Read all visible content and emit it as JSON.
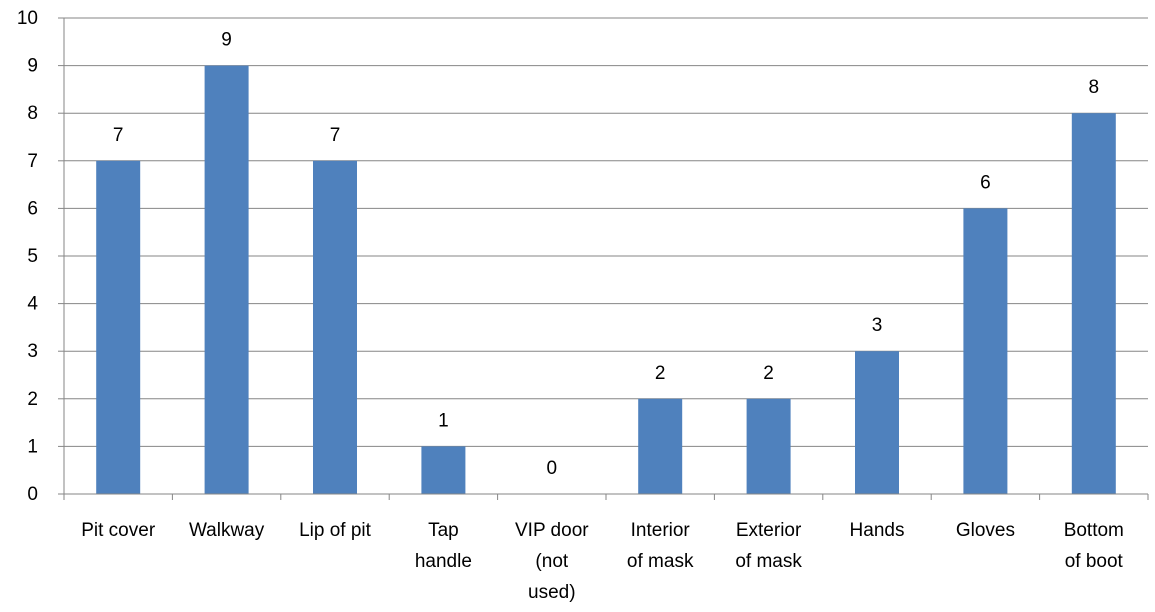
{
  "chart_data": {
    "type": "bar",
    "categories": [
      "Pit cover",
      "Walkway",
      "Lip of pit",
      "Tap handle",
      "VIP door (not used)",
      "Interior of mask",
      "Exterior of mask",
      "Hands",
      "Gloves",
      "Bottom of boot"
    ],
    "category_lines": [
      [
        "Pit cover"
      ],
      [
        "Walkway"
      ],
      [
        "Lip of pit"
      ],
      [
        "Tap",
        "handle"
      ],
      [
        "VIP door",
        "(not",
        "used)"
      ],
      [
        "Interior",
        "of mask"
      ],
      [
        "Exterior",
        "of mask"
      ],
      [
        "Hands"
      ],
      [
        "Gloves"
      ],
      [
        "Bottom",
        "of boot"
      ]
    ],
    "values": [
      7,
      9,
      7,
      1,
      0,
      2,
      2,
      3,
      6,
      8
    ],
    "data_labels": [
      "7",
      "9",
      "7",
      "1",
      "0",
      "2",
      "2",
      "3",
      "6",
      "8"
    ],
    "ylim": [
      0,
      10
    ],
    "y_tick_labels": [
      "0",
      "1",
      "2",
      "3",
      "4",
      "5",
      "6",
      "7",
      "8",
      "9",
      "10"
    ],
    "grid": true,
    "legend": "none",
    "bar_color": "#4F81BD",
    "title": "",
    "xlabel": "",
    "ylabel": ""
  }
}
